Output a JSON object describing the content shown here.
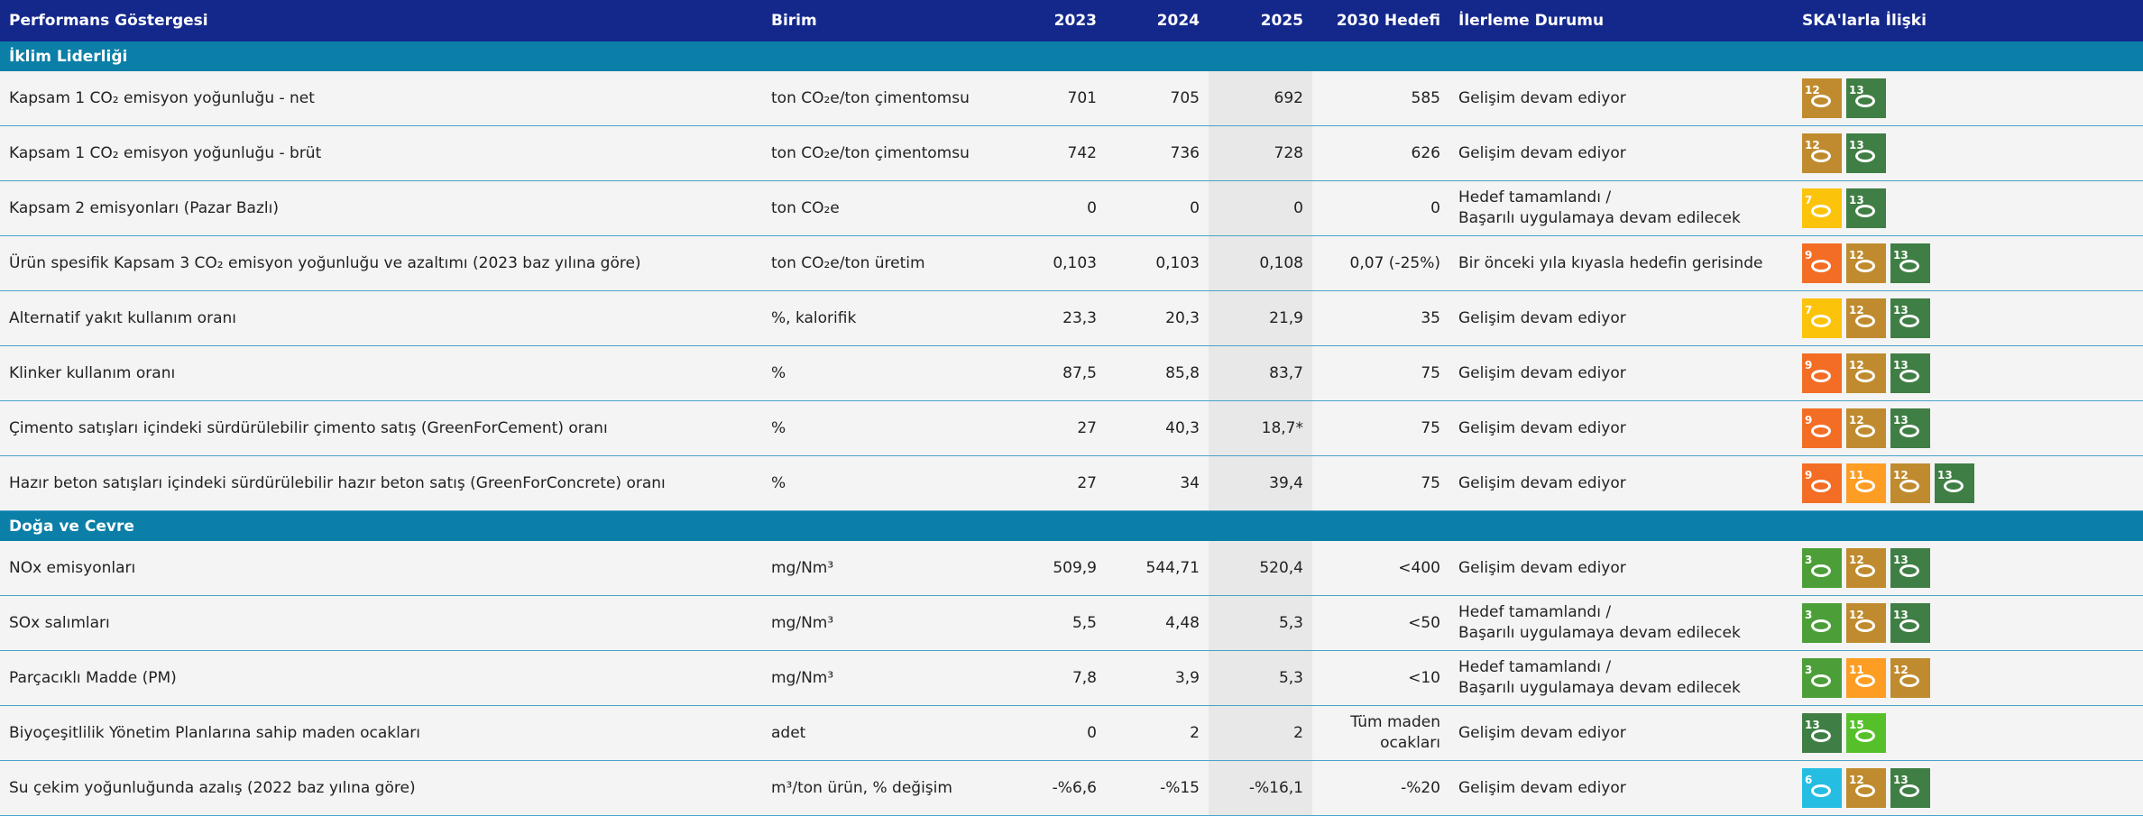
{
  "header": [
    "Performans Göstergesi",
    "Birim",
    "2023",
    "2024",
    "2025",
    "2030 Hedefi",
    "İlerleme Durumu",
    "SKA'larla İlişki"
  ],
  "sections": [
    {
      "title": "İklim Liderliği",
      "rows": [
        {
          "cells": [
            "Kapsam 1 CO₂ emisyon yoğunluğu - net",
            "ton CO₂e/ton çimentomsu",
            "701",
            "705",
            "692",
            "585",
            "Gelişim devam ediyor"
          ],
          "sdg": [
            12,
            13
          ]
        },
        {
          "cells": [
            "Kapsam 1 CO₂ emisyon yoğunluğu - brüt",
            "ton CO₂e/ton çimentomsu",
            "742",
            "736",
            "728",
            "626",
            "Gelişim devam ediyor"
          ],
          "sdg": [
            12,
            13
          ]
        },
        {
          "cells": [
            "Kapsam 2 emisyonları (Pazar Bazlı)",
            "ton CO₂e",
            "0",
            "0",
            "0",
            "0",
            "Hedef tamamlandı /\nBaşarılı uygulamaya devam edilecek"
          ],
          "sdg": [
            7,
            13
          ]
        },
        {
          "cells": [
            "Ürün spesifik Kapsam 3 CO₂ emisyon yoğunluğu ve azaltımı (2023 baz yılına göre)",
            "ton CO₂e/ton üretim",
            "0,103",
            "0,103",
            "0,108",
            "0,07 (-25%)",
            "Bir önceki yıla kıyasla hedefin gerisinde"
          ],
          "sdg": [
            9,
            12,
            13
          ]
        },
        {
          "cells": [
            "Alternatif yakıt kullanım oranı",
            "%, kalorifik",
            "23,3",
            "20,3",
            "21,9",
            "35",
            "Gelişim devam ediyor"
          ],
          "sdg": [
            7,
            12,
            13
          ]
        },
        {
          "cells": [
            "Klinker kullanım oranı",
            "%",
            "87,5",
            "85,8",
            "83,7",
            "75",
            "Gelişim devam ediyor"
          ],
          "sdg": [
            9,
            12,
            13
          ]
        },
        {
          "cells": [
            "Çimento satışları içindeki sürdürülebilir çimento satış (GreenForCement) oranı",
            "%",
            "27",
            "40,3",
            "18,7*",
            "75",
            "Gelişim devam ediyor"
          ],
          "sdg": [
            9,
            12,
            13
          ]
        },
        {
          "cells": [
            "Hazır beton satışları içindeki sürdürülebilir hazır beton satış (GreenForConcrete) oranı",
            "%",
            "27",
            "34",
            "39,4",
            "75",
            "Gelişim devam ediyor"
          ],
          "sdg": [
            9,
            11,
            12,
            13
          ]
        }
      ]
    },
    {
      "title": "Doğa ve Cevre",
      "rows": [
        {
          "cells": [
            "NOx emisyonları",
            "mg/Nm³",
            "509,9",
            "544,71",
            "520,4",
            "<400",
            "Gelişim devam ediyor"
          ],
          "sdg": [
            3,
            12,
            13
          ]
        },
        {
          "cells": [
            "SOx salımları",
            "mg/Nm³",
            "5,5",
            "4,48",
            "5,3",
            "<50",
            "Hedef tamamlandı /\nBaşarılı uygulamaya devam edilecek"
          ],
          "sdg": [
            3,
            12,
            13
          ]
        },
        {
          "cells": [
            "Parçacıklı Madde (PM)",
            "mg/Nm³",
            "7,8",
            "3,9",
            "5,3",
            "<10",
            "Hedef tamamlandı /\nBaşarılı uygulamaya devam edilecek"
          ],
          "sdg": [
            3,
            11,
            12
          ]
        },
        {
          "cells": [
            "Biyoçeşitlilik Yönetim Planlarına sahip maden ocakları",
            "adet",
            "0",
            "2",
            "2",
            "Tüm maden\nocakları",
            "Gelişim devam ediyor"
          ],
          "sdg": [
            13,
            15
          ]
        },
        {
          "cells": [
            "Su çekim yoğunluğunda azalış (2022 baz yılına göre)",
            "m³/ton ürün, % değişim",
            "-%6,6",
            "-%15",
            "-%16,1",
            "-%20",
            "Gelişim devam ediyor"
          ],
          "sdg": [
            6,
            12,
            13
          ]
        }
      ]
    }
  ]
}
